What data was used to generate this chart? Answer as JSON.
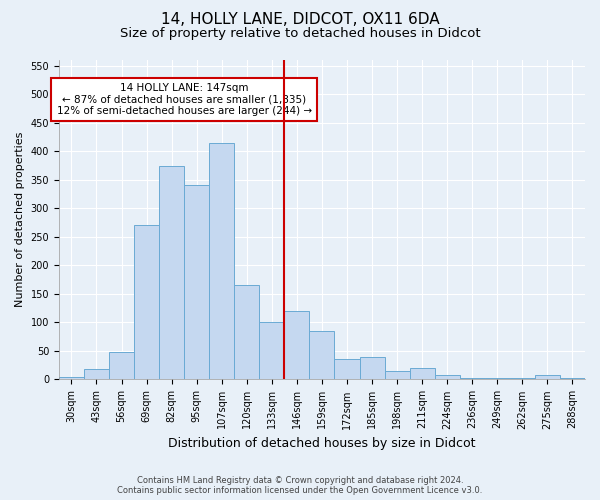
{
  "title": "14, HOLLY LANE, DIDCOT, OX11 6DA",
  "subtitle": "Size of property relative to detached houses in Didcot",
  "xlabel": "Distribution of detached houses by size in Didcot",
  "ylabel": "Number of detached properties",
  "footer_line1": "Contains HM Land Registry data © Crown copyright and database right 2024.",
  "footer_line2": "Contains public sector information licensed under the Open Government Licence v3.0.",
  "categories": [
    "30sqm",
    "43sqm",
    "56sqm",
    "69sqm",
    "82sqm",
    "95sqm",
    "107sqm",
    "120sqm",
    "133sqm",
    "146sqm",
    "159sqm",
    "172sqm",
    "185sqm",
    "198sqm",
    "211sqm",
    "224sqm",
    "236sqm",
    "249sqm",
    "262sqm",
    "275sqm",
    "288sqm"
  ],
  "values": [
    5,
    18,
    48,
    270,
    375,
    340,
    415,
    165,
    100,
    120,
    85,
    35,
    40,
    15,
    20,
    8,
    3,
    3,
    3,
    8,
    3
  ],
  "bar_color": "#c5d8f0",
  "bar_edge_color": "#6aaad4",
  "vline_x_index": 9,
  "vline_color": "#cc0000",
  "annotation_text": "14 HOLLY LANE: 147sqm\n← 87% of detached houses are smaller (1,835)\n12% of semi-detached houses are larger (244) →",
  "annotation_box_color": "#cc0000",
  "ylim": [
    0,
    560
  ],
  "yticks": [
    0,
    50,
    100,
    150,
    200,
    250,
    300,
    350,
    400,
    450,
    500,
    550
  ],
  "background_color": "#e8f0f8",
  "plot_background": "#e8f0f8",
  "grid_color": "#ffffff",
  "title_fontsize": 11,
  "subtitle_fontsize": 9.5,
  "xlabel_fontsize": 9,
  "ylabel_fontsize": 8,
  "tick_fontsize": 7,
  "footer_fontsize": 6,
  "annotation_fontsize": 7.5
}
